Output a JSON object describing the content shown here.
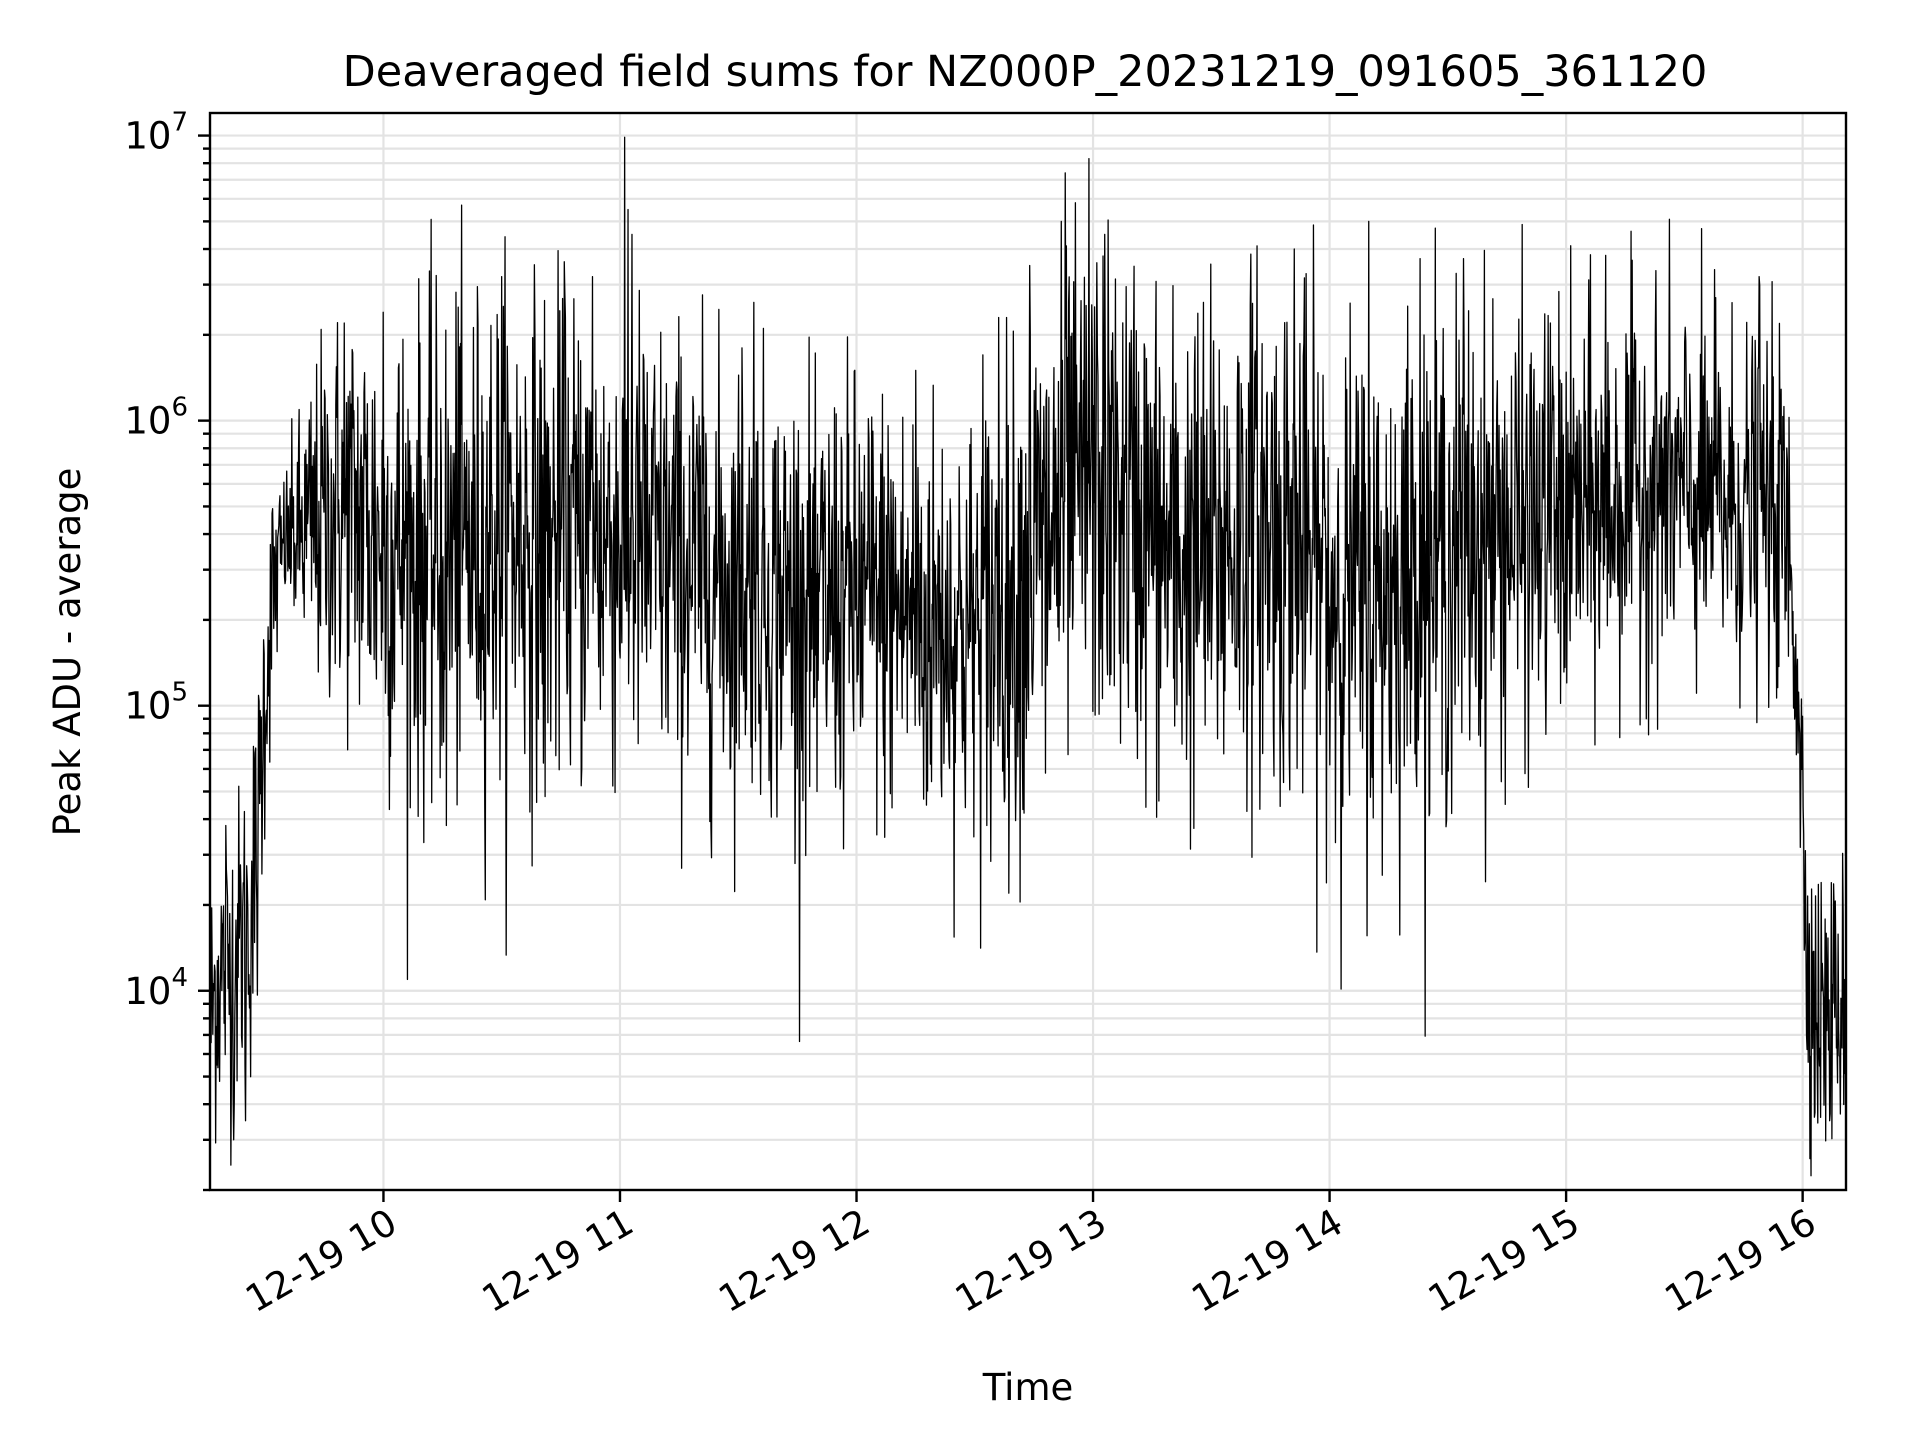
{
  "chart_data": {
    "type": "line",
    "title": "Deaveraged field sums for NZ000P_20231219_091605_361120",
    "xlabel": "Time",
    "ylabel": "Peak ADU - average",
    "yscale": "log",
    "ylim": [
      2000,
      12000000
    ],
    "xlim": [
      "2023-12-19 09:16",
      "2023-12-19 16:11"
    ],
    "grid": "on (major and minor)",
    "legend": "none",
    "color": "#000000",
    "x_ticks": [
      {
        "t": "2023-12-19 10:00",
        "label": "12-19 10"
      },
      {
        "t": "2023-12-19 11:00",
        "label": "12-19 11"
      },
      {
        "t": "2023-12-19 12:00",
        "label": "12-19 12"
      },
      {
        "t": "2023-12-19 13:00",
        "label": "12-19 13"
      },
      {
        "t": "2023-12-19 14:00",
        "label": "12-19 14"
      },
      {
        "t": "2023-12-19 15:00",
        "label": "12-19 15"
      },
      {
        "t": "2023-12-19 16:00",
        "label": "12-19 16"
      }
    ],
    "y_ticks": [
      {
        "v": 10000,
        "base": "10",
        "exp": "4"
      },
      {
        "v": 100000,
        "base": "10",
        "exp": "5"
      },
      {
        "v": 1000000,
        "base": "10",
        "exp": "6"
      },
      {
        "v": 10000000,
        "base": "10",
        "exp": "7"
      }
    ],
    "series": [
      {
        "points": [
          [
            "2023-12-19 09:16",
            8000
          ],
          [
            "2023-12-19 09:18",
            11000
          ],
          [
            "2023-12-19 09:20",
            12000
          ],
          [
            "2023-12-19 09:22",
            13000
          ],
          [
            "2023-12-19 09:24",
            15000
          ],
          [
            "2023-12-19 09:26",
            17000
          ],
          [
            "2023-12-19 09:28",
            30000
          ],
          [
            "2023-12-19 09:30",
            120000
          ],
          [
            "2023-12-19 09:32",
            250000
          ],
          [
            "2023-12-19 09:35",
            380000
          ],
          [
            "2023-12-19 09:40",
            400000
          ],
          [
            "2023-12-19 09:45",
            450000
          ],
          [
            "2023-12-19 09:50",
            500000
          ],
          [
            "2023-12-19 09:55",
            450000
          ],
          [
            "2023-12-19 10:00",
            380000
          ],
          [
            "2023-12-19 10:10",
            330000
          ],
          [
            "2023-12-19 10:20",
            350000
          ],
          [
            "2023-12-19 10:30",
            420000
          ],
          [
            "2023-12-19 10:40",
            380000
          ],
          [
            "2023-12-19 10:50",
            380000
          ],
          [
            "2023-12-19 11:00",
            400000
          ],
          [
            "2023-12-19 11:10",
            340000
          ],
          [
            "2023-12-19 11:20",
            300000
          ],
          [
            "2023-12-19 11:30",
            270000
          ],
          [
            "2023-12-19 11:40",
            250000
          ],
          [
            "2023-12-19 11:50",
            230000
          ],
          [
            "2023-12-19 12:00",
            240000
          ],
          [
            "2023-12-19 12:10",
            220000
          ],
          [
            "2023-12-19 12:20",
            200000
          ],
          [
            "2023-12-19 12:30",
            180000
          ],
          [
            "2023-12-19 12:40",
            250000
          ],
          [
            "2023-12-19 12:50",
            450000
          ],
          [
            "2023-12-19 13:00",
            580000
          ],
          [
            "2023-12-19 13:10",
            500000
          ],
          [
            "2023-12-19 13:20",
            320000
          ],
          [
            "2023-12-19 13:30",
            330000
          ],
          [
            "2023-12-19 13:40",
            450000
          ],
          [
            "2023-12-19 13:50",
            380000
          ],
          [
            "2023-12-19 14:00",
            280000
          ],
          [
            "2023-12-19 14:10",
            230000
          ],
          [
            "2023-12-19 14:20",
            300000
          ],
          [
            "2023-12-19 14:30",
            350000
          ],
          [
            "2023-12-19 14:40",
            400000
          ],
          [
            "2023-12-19 14:50",
            420000
          ],
          [
            "2023-12-19 15:00",
            450000
          ],
          [
            "2023-12-19 15:10",
            500000
          ],
          [
            "2023-12-19 15:20",
            600000
          ],
          [
            "2023-12-19 15:30",
            550000
          ],
          [
            "2023-12-19 15:40",
            500000
          ],
          [
            "2023-12-19 15:50",
            500000
          ],
          [
            "2023-12-19 15:55",
            450000
          ],
          [
            "2023-12-19 15:57",
            300000
          ],
          [
            "2023-12-19 15:59",
            120000
          ],
          [
            "2023-12-19 16:00",
            40000
          ],
          [
            "2023-12-19 16:01",
            15000
          ],
          [
            "2023-12-19 16:03",
            9000
          ],
          [
            "2023-12-19 16:05",
            8000
          ],
          [
            "2023-12-19 16:08",
            8500
          ],
          [
            "2023-12-19 16:11",
            10000
          ]
        ],
        "spread": [
          [
            "2023-12-19 09:16",
            2.0
          ],
          [
            "2023-12-19 09:28",
            2.2
          ],
          [
            "2023-12-19 09:35",
            1.4
          ],
          [
            "2023-12-19 09:45",
            2.4
          ],
          [
            "2023-12-19 10:00",
            3.2
          ],
          [
            "2023-12-19 10:30",
            3.3
          ],
          [
            "2023-12-19 11:00",
            3.2
          ],
          [
            "2023-12-19 11:30",
            2.8
          ],
          [
            "2023-12-19 12:00",
            2.9
          ],
          [
            "2023-12-19 12:30",
            2.8
          ],
          [
            "2023-12-19 12:50",
            3.5
          ],
          [
            "2023-12-19 13:00",
            3.2
          ],
          [
            "2023-12-19 13:20",
            3.4
          ],
          [
            "2023-12-19 14:00",
            3.4
          ],
          [
            "2023-12-19 14:30",
            3.3
          ],
          [
            "2023-12-19 15:00",
            2.6
          ],
          [
            "2023-12-19 15:30",
            2.4
          ],
          [
            "2023-12-19 15:55",
            2.3
          ],
          [
            "2023-12-19 16:00",
            2.0
          ],
          [
            "2023-12-19 16:11",
            1.9
          ]
        ],
        "peaks": [
          [
            "2023-12-19 09:20",
            38000
          ],
          [
            "2023-12-19 09:27",
            72000
          ],
          [
            "2023-12-19 09:50",
            2200000
          ],
          [
            "2023-12-19 10:00",
            2400000
          ],
          [
            "2023-12-19 10:19",
            2500000
          ],
          [
            "2023-12-19 10:30",
            3200000
          ],
          [
            "2023-12-19 10:46",
            2800000
          ],
          [
            "2023-12-19 10:53",
            3200000
          ],
          [
            "2023-12-19 11:02",
            5500000
          ],
          [
            "2023-12-19 11:03",
            4500000
          ],
          [
            "2023-12-19 11:31",
            1800000
          ],
          [
            "2023-12-19 11:34",
            2600000
          ],
          [
            "2023-12-19 12:15",
            1500000
          ],
          [
            "2023-12-19 12:32",
            1700000
          ],
          [
            "2023-12-19 12:36",
            2300000
          ],
          [
            "2023-12-19 12:44",
            3500000
          ],
          [
            "2023-12-19 12:52",
            5000000
          ],
          [
            "2023-12-19 12:53",
            7400000
          ],
          [
            "2023-12-19 12:59",
            8300000
          ],
          [
            "2023-12-19 13:03",
            4500000
          ],
          [
            "2023-12-19 13:28",
            2600000
          ],
          [
            "2023-12-19 13:51",
            4000000
          ],
          [
            "2023-12-19 14:10",
            5000000
          ],
          [
            "2023-12-19 14:23",
            3700000
          ],
          [
            "2023-12-19 14:34",
            3700000
          ],
          [
            "2023-12-19 14:56",
            2200000
          ],
          [
            "2023-12-19 15:10",
            3800000
          ],
          [
            "2023-12-19 15:38",
            2700000
          ],
          [
            "2023-12-19 15:49",
            3200000
          ]
        ],
        "dips": [
          [
            "2023-12-19 09:22",
            3000
          ],
          [
            "2023-12-19 09:25",
            3500
          ],
          [
            "2023-12-19 10:16",
            38000
          ],
          [
            "2023-12-19 10:41",
            48000
          ],
          [
            "2023-12-19 11:28",
            60000
          ],
          [
            "2023-12-19 11:50",
            50000
          ],
          [
            "2023-12-19 12:17",
            47000
          ],
          [
            "2023-12-19 12:33",
            38000
          ],
          [
            "2023-12-19 12:48",
            58000
          ],
          [
            "2023-12-19 14:00",
            62000
          ],
          [
            "2023-12-19 14:22",
            60000
          ],
          [
            "2023-12-19 16:03",
            3600
          ],
          [
            "2023-12-19 16:07",
            3700
          ]
        ]
      }
    ]
  }
}
